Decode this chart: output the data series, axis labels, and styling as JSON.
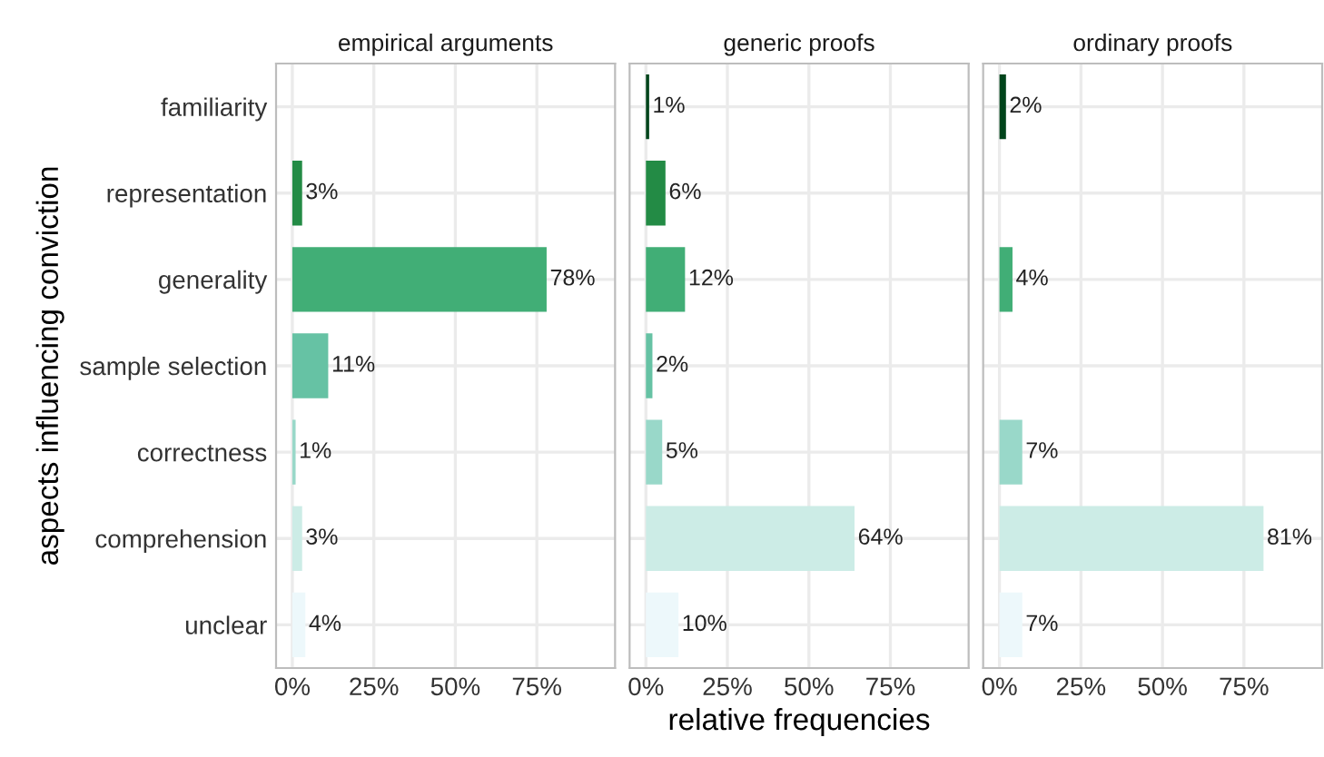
{
  "chart_data": [
    {
      "type": "bar",
      "orientation": "horizontal",
      "title": "empirical arguments",
      "ylabel": "aspects influencing conviction",
      "categories": [
        "familiarity",
        "representation",
        "generality",
        "sample selection",
        "correctness",
        "comprehension",
        "unclear"
      ],
      "values": [
        null,
        3,
        78,
        11,
        1,
        3,
        4
      ],
      "value_labels": [
        null,
        "3%",
        "78%",
        "11%",
        "1%",
        "3%",
        "4%"
      ],
      "colors": [
        "#00441b",
        "#238b45",
        "#41ae76",
        "#66c2a4",
        "#99d8c9",
        "#ccece6",
        "#edf8fb"
      ],
      "xlim": [
        -5,
        99
      ],
      "xticks": [
        {
          "value": 0,
          "label": "0%"
        },
        {
          "value": 25,
          "label": "25%"
        },
        {
          "value": 50,
          "label": "50%"
        },
        {
          "value": 75,
          "label": "75%"
        }
      ],
      "grid": true
    },
    {
      "type": "bar",
      "orientation": "horizontal",
      "title": "generic proofs",
      "xlabel": "relative frequencies",
      "categories": [
        "familiarity",
        "representation",
        "generality",
        "sample selection",
        "correctness",
        "comprehension",
        "unclear"
      ],
      "values": [
        1,
        6,
        12,
        2,
        5,
        64,
        10
      ],
      "value_labels": [
        "1%",
        "6%",
        "12%",
        "2%",
        "5%",
        "64%",
        "10%"
      ],
      "colors": [
        "#00441b",
        "#238b45",
        "#41ae76",
        "#66c2a4",
        "#99d8c9",
        "#ccece6",
        "#edf8fb"
      ],
      "xlim": [
        -5,
        99
      ],
      "xticks": [
        {
          "value": 0,
          "label": "0%"
        },
        {
          "value": 25,
          "label": "25%"
        },
        {
          "value": 50,
          "label": "50%"
        },
        {
          "value": 75,
          "label": "75%"
        }
      ],
      "grid": true,
      "tick_labels": "x"
    },
    {
      "type": "bar",
      "orientation": "horizontal",
      "title": "ordinary proofs",
      "categories": [
        "familiarity",
        "representation",
        "generality",
        "sample selection",
        "correctness",
        "comprehension",
        "unclear"
      ],
      "values": [
        2,
        null,
        4,
        null,
        7,
        81,
        7
      ],
      "value_labels": [
        "2%",
        null,
        "4%",
        null,
        "7%",
        "81%",
        "7%"
      ],
      "colors": [
        "#00441b",
        "#238b45",
        "#41ae76",
        "#66c2a4",
        "#99d8c9",
        "#ccece6",
        "#edf8fb"
      ],
      "xlim": [
        -5,
        99
      ],
      "xticks": [
        {
          "value": 0,
          "label": "0%"
        },
        {
          "value": 25,
          "label": "25%"
        },
        {
          "value": 50,
          "label": "50%"
        },
        {
          "value": 75,
          "label": "75%"
        }
      ],
      "grid": true,
      "tick_labels": "x"
    }
  ]
}
